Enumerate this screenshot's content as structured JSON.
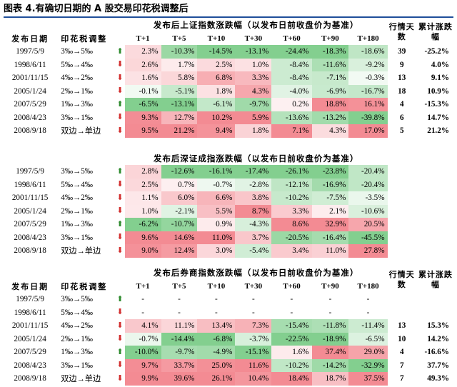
{
  "title": "图表 4.有确切日期的 A 股交易印花税调整后",
  "colors": {
    "up_arrow": "#2e8b2e",
    "down_arrow": "#d22f2f"
  },
  "tables": [
    {
      "subtitle": "发布后上证指数涨跌幅（以发布日前收盘价为基准）",
      "headers": {
        "date": "发布日期",
        "tax": "印花税调整",
        "periods": [
          "T+1",
          "T+5",
          "T+10",
          "T+30",
          "T+60",
          "T+90",
          "T+180"
        ],
        "days": "行情天数",
        "cum": "累计涨跌幅"
      },
      "rows": [
        {
          "date": "1997/5/9",
          "tax": "3‰→5‰",
          "dir": "up",
          "values": [
            "2.3%",
            "-10.3%",
            "-14.5%",
            "-13.1%",
            "-24.4%",
            "-18.3%",
            "-18.6%"
          ],
          "days": "39",
          "cum": "-25.2%"
        },
        {
          "date": "1998/6/11",
          "tax": "5‰→4‰",
          "dir": "down",
          "values": [
            "2.6%",
            "1.7%",
            "2.5%",
            "1.0%",
            "-8.4%",
            "-11.6%",
            "-9.2%"
          ],
          "days": "9",
          "cum": "4.0%"
        },
        {
          "date": "2001/11/15",
          "tax": "4‰→2‰",
          "dir": "down",
          "values": [
            "1.6%",
            "5.8%",
            "6.8%",
            "3.3%",
            "-8.4%",
            "-7.1%",
            "-0.3%"
          ],
          "days": "13",
          "cum": "9.1%"
        },
        {
          "date": "2005/1/24",
          "tax": "2‰→1‰",
          "dir": "down",
          "values": [
            "-0.1%",
            "-5.1%",
            "1.8%",
            "4.3%",
            "-4.0%",
            "-6.9%",
            "-16.7%"
          ],
          "days": "18",
          "cum": "10.9%"
        },
        {
          "date": "2007/5/29",
          "tax": "1‰→3‰",
          "dir": "up",
          "values": [
            "-6.5%",
            "-13.1%",
            "-6.1%",
            "-9.7%",
            "0.2%",
            "18.8%",
            "16.1%"
          ],
          "days": "4",
          "cum": "-15.3%"
        },
        {
          "date": "2008/4/23",
          "tax": "3‰→1‰",
          "dir": "down",
          "values": [
            "9.3%",
            "12.7%",
            "10.2%",
            "5.9%",
            "-13.6%",
            "-13.2%",
            "-39.8%"
          ],
          "days": "6",
          "cum": "14.7%"
        },
        {
          "date": "2008/9/18",
          "tax": "双边→单边",
          "dir": "down",
          "values": [
            "9.5%",
            "21.2%",
            "9.4%",
            "1.8%",
            "7.1%",
            "4.3%",
            "17.0%"
          ],
          "days": "5",
          "cum": "21.2%"
        }
      ]
    },
    {
      "subtitle": "发布后深证成指涨跌幅（以发布日前收盘价为基准）",
      "rows": [
        {
          "date": "1997/5/9",
          "tax": "3‰→5‰",
          "dir": "up",
          "values": [
            "2.8%",
            "-12.6%",
            "-16.1%",
            "-17.4%",
            "-26.1%",
            "-23.8%",
            "-20.4%"
          ]
        },
        {
          "date": "1998/6/11",
          "tax": "5‰→4‰",
          "dir": "down",
          "values": [
            "2.5%",
            "0.7%",
            "-0.7%",
            "-2.8%",
            "-12.1%",
            "-16.9%",
            "-20.4%"
          ]
        },
        {
          "date": "2001/11/15",
          "tax": "4‰→2‰",
          "dir": "down",
          "values": [
            "1.1%",
            "6.0%",
            "6.6%",
            "3.8%",
            "-10.2%",
            "-7.5%",
            "-3.5%"
          ]
        },
        {
          "date": "2005/1/24",
          "tax": "2‰→1‰",
          "dir": "down",
          "values": [
            "1.0%",
            "-2.1%",
            "5.5%",
            "8.7%",
            "3.3%",
            "2.1%",
            "-10.6%"
          ]
        },
        {
          "date": "2007/5/29",
          "tax": "1‰→3‰",
          "dir": "up",
          "values": [
            "-6.2%",
            "-10.7%",
            "0.9%",
            "-4.3%",
            "8.6%",
            "32.9%",
            "20.5%"
          ]
        },
        {
          "date": "2008/4/23",
          "tax": "3‰→1‰",
          "dir": "down",
          "values": [
            "9.6%",
            "14.6%",
            "11.0%",
            "3.7%",
            "-20.5%",
            "-16.4%",
            "-45.5%"
          ]
        },
        {
          "date": "2008/9/18",
          "tax": "双边→单边",
          "dir": "down",
          "values": [
            "9.0%",
            "12.4%",
            "3.0%",
            "-5.4%",
            "3.4%",
            "11.0%",
            "27.8%"
          ]
        }
      ]
    },
    {
      "subtitle": "发布后券商指数涨跌幅（以发布日前收盘价为基准）",
      "headers": {
        "date": "发布日期",
        "tax": "印花税调整",
        "periods": [
          "T+1",
          "T+5",
          "T+10",
          "T+30",
          "T+60",
          "T+90",
          "T+180"
        ],
        "days": "行情天数",
        "cum": "累计涨跌幅"
      },
      "rows": [
        {
          "date": "1997/5/9",
          "tax": "3‰→5‰",
          "dir": "up",
          "values": [
            "-",
            "-",
            "-",
            "-",
            "-",
            "-",
            "-"
          ],
          "days": "",
          "cum": ""
        },
        {
          "date": "1998/6/11",
          "tax": "5‰→4‰",
          "dir": "down",
          "values": [
            "-",
            "-",
            "-",
            "-",
            "-",
            "-",
            "-"
          ],
          "days": "",
          "cum": ""
        },
        {
          "date": "2001/11/15",
          "tax": "4‰→2‰",
          "dir": "down",
          "values": [
            "4.1%",
            "11.1%",
            "13.4%",
            "7.3%",
            "-15.4%",
            "-11.8%",
            "-11.4%"
          ],
          "days": "13",
          "cum": "15.3%"
        },
        {
          "date": "2005/1/24",
          "tax": "2‰→1‰",
          "dir": "down",
          "values": [
            "-0.7%",
            "-14.4%",
            "-6.8%",
            "-3.7%",
            "-22.5%",
            "-18.9%",
            "-6.5%"
          ],
          "days": "10",
          "cum": "14.2%"
        },
        {
          "date": "2007/5/29",
          "tax": "1‰→3‰",
          "dir": "up",
          "values": [
            "-10.0%",
            "-9.7%",
            "-4.9%",
            "-15.1%",
            "1.6%",
            "37.4%",
            "29.0%"
          ],
          "days": "4",
          "cum": "-16.6%"
        },
        {
          "date": "2008/4/23",
          "tax": "3‰→1‰",
          "dir": "down",
          "values": [
            "9.7%",
            "33.7%",
            "25.0%",
            "11.6%",
            "-10.2%",
            "-14.2%",
            "-32.9%"
          ],
          "days": "7",
          "cum": "37.7%"
        },
        {
          "date": "2008/9/18",
          "tax": "双边→单边",
          "dir": "down",
          "values": [
            "9.9%",
            "39.6%",
            "26.1%",
            "10.4%",
            "18.4%",
            "18.7%",
            "37.5%"
          ],
          "days": "7",
          "cum": "49.3%"
        }
      ]
    }
  ]
}
